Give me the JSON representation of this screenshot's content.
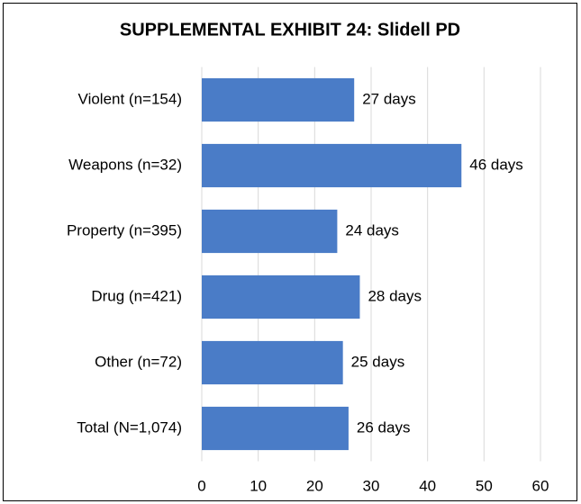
{
  "chart_data": {
    "type": "bar",
    "orientation": "horizontal",
    "title": "SUPPLEMENTAL EXHIBIT 24: Slidell PD",
    "categories": [
      "Violent (n=154)",
      "Weapons (n=32)",
      "Property (n=395)",
      "Drug (n=421)",
      "Other (n=72)",
      "Total (N=1,074)"
    ],
    "values": [
      27,
      46,
      24,
      28,
      25,
      26
    ],
    "value_labels": [
      "27 days",
      "46 days",
      "24 days",
      "28 days",
      "25 days",
      "26 days"
    ],
    "color": "#4a7cc7",
    "xlim": [
      0,
      60
    ],
    "xticks": [
      0,
      10,
      20,
      30,
      40,
      50,
      60
    ],
    "grid": true
  }
}
